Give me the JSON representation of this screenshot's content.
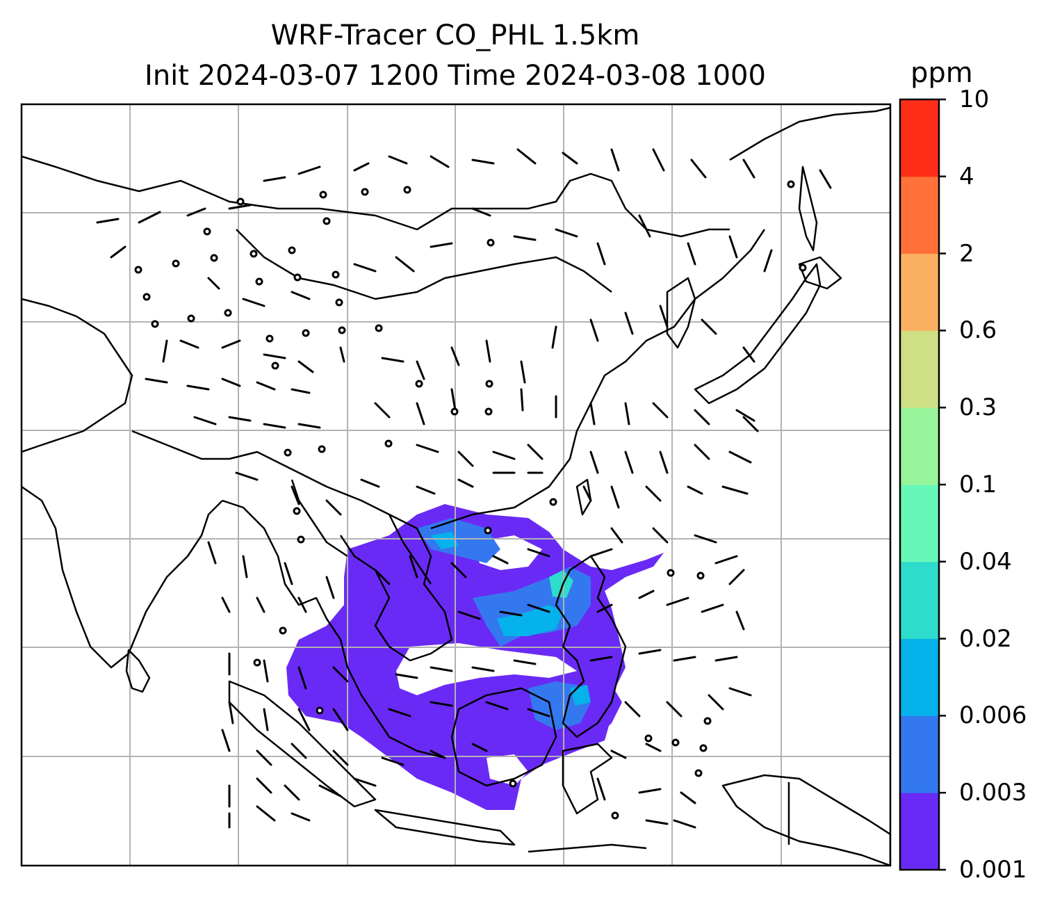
{
  "title": {
    "line1": "WRF-Tracer CO_PHL 1.5km",
    "line2": "Init 2024-03-07 1200 Time 2024-03-08 1000"
  },
  "colorbar": {
    "unit": "ppm",
    "levels": [
      "0.001",
      "0.003",
      "0.006",
      "0.02",
      "0.04",
      "0.1",
      "0.3",
      "0.6",
      "2",
      "4",
      "10"
    ],
    "colors": [
      "#6a2af5",
      "#3478f0",
      "#05b2eb",
      "#2ddccb",
      "#66f7b9",
      "#98f49a",
      "#cfe084",
      "#fbb161",
      "#ff7138",
      "#ff2e19"
    ]
  },
  "map": {
    "grid": "on",
    "gridline_color": "#b3b3b3",
    "coastline_color": "#000000",
    "plume_colors": {
      "low": "#6a2af5",
      "mid": "#3478f0",
      "high": "#05b2eb",
      "peak": "#2ddccb"
    }
  }
}
